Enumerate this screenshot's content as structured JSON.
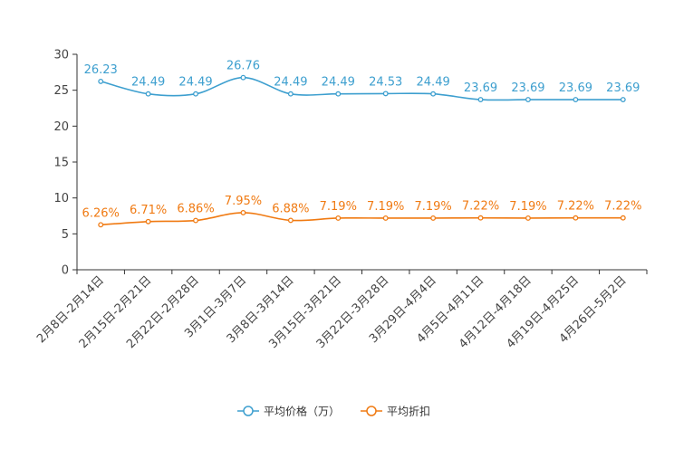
{
  "chart_data": {
    "type": "line",
    "title": "",
    "xlabel": "",
    "ylabel": "",
    "ylim": [
      0,
      30
    ],
    "yticks": [
      0,
      5,
      10,
      15,
      20,
      25,
      30
    ],
    "grid": false,
    "legend_position": "bottom",
    "categories": [
      "2月8日-2月14日",
      "2月15日-2月21日",
      "2月22日-2月28日",
      "3月1日-3月7日",
      "3月8日-3月14日",
      "3月15日-3月21日",
      "3月22日-3月28日",
      "3月29日-4月4日",
      "4月5日-4月11日",
      "4月12日-4月18日",
      "4月19日-4月25日",
      "4月26日-5月2日"
    ],
    "series": [
      {
        "name": "平均价格（万）",
        "color": "#3d9fcf",
        "values": [
          26.23,
          24.49,
          24.49,
          26.76,
          24.49,
          24.49,
          24.53,
          24.49,
          23.69,
          23.69,
          23.69,
          23.69
        ],
        "labels": [
          "26.23",
          "24.49",
          "24.49",
          "26.76",
          "24.49",
          "24.49",
          "24.53",
          "24.49",
          "23.69",
          "23.69",
          "23.69",
          "23.69"
        ]
      },
      {
        "name": "平均折扣",
        "color": "#f07a12",
        "values": [
          6.26,
          6.71,
          6.86,
          7.95,
          6.88,
          7.19,
          7.19,
          7.19,
          7.22,
          7.19,
          7.22,
          7.22
        ],
        "labels": [
          "6.26%",
          "6.71%",
          "6.86%",
          "7.95%",
          "6.88%",
          "7.19%",
          "7.19%",
          "7.19%",
          "7.22%",
          "7.19%",
          "7.22%",
          "7.22%"
        ]
      }
    ]
  }
}
